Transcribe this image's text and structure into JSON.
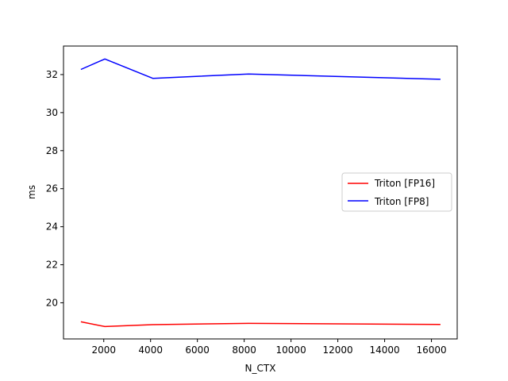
{
  "chart_data": {
    "type": "line",
    "title": "",
    "xlabel": "N_CTX",
    "ylabel": "ms",
    "xlim": [
      280,
      17100
    ],
    "ylim": [
      18.1,
      33.5
    ],
    "xticks": [
      2000,
      4000,
      6000,
      8000,
      10000,
      12000,
      14000,
      16000
    ],
    "yticks": [
      20,
      22,
      24,
      26,
      28,
      30,
      32
    ],
    "grid": false,
    "legend_position": "center-right",
    "x": [
      1024,
      2048,
      4096,
      8192,
      16384
    ],
    "series": [
      {
        "name": "Triton [FP16]",
        "color": "#ff0000",
        "values": [
          19.0,
          18.75,
          18.85,
          18.92,
          18.86
        ]
      },
      {
        "name": "Triton [FP8]",
        "color": "#0000ff",
        "values": [
          32.27,
          32.82,
          31.8,
          32.03,
          31.75
        ]
      }
    ]
  }
}
